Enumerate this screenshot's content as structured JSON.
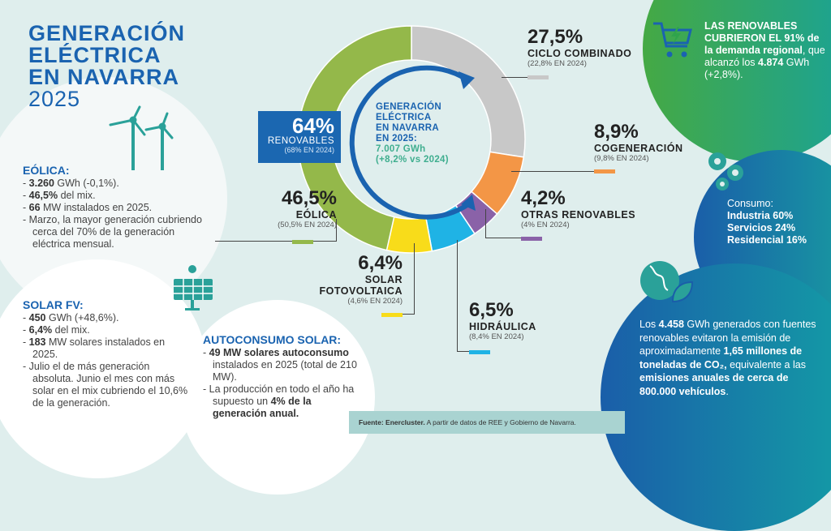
{
  "title": {
    "line1": "GENERACIÓN",
    "line2": "ELÉCTRICA",
    "line3": "EN NAVARRA",
    "year": "2025"
  },
  "eolica_box": {
    "heading": "EÓLICA:",
    "items": [
      {
        "b": "3.260",
        "t": " GWh (-0,1%)."
      },
      {
        "b": "46,5%",
        "t": " del mix."
      },
      {
        "b": "66",
        "t": " MW instalados en 2025."
      },
      {
        "b": "",
        "t": "Marzo, la mayor generación cubriendo cerca del 70% de la generación eléctrica mensual."
      }
    ]
  },
  "solar_box": {
    "heading": "SOLAR FV:",
    "items": [
      {
        "b": "450",
        "t": " GWh (+48,6%)."
      },
      {
        "b": "6,4%",
        "t": " del mix."
      },
      {
        "b": "183",
        "t": " MW solares instalados en 2025."
      },
      {
        "b": "",
        "t": "Julio el de más generación absoluta. Junio el mes con más solar en el mix cubriendo el 10,6% de la generación."
      }
    ]
  },
  "autoconsumo_box": {
    "heading": "AUTOCONSUMO SOLAR:",
    "item1_b": "49 MW solares autoconsumo",
    "item1_t": " instalados en 2025 (total de 210 MW).",
    "item2_t": "La producción en todo el año ha supuesto un ",
    "item2_b": "4% de la generación anual."
  },
  "renovables": {
    "pct": "64%",
    "label": "RENOVABLES",
    "prev": "(68% EN 2024)"
  },
  "center": {
    "l1": "GENERACIÓN",
    "l2": "ELÉCTRICA",
    "l3": "EN NAVARRA",
    "l4": "EN 2025:",
    "value": "7.007 GWh",
    "change": "(+8,2% vs 2024)"
  },
  "chart_data": {
    "type": "pie",
    "donut": true,
    "categories": [
      "CICLO COMBINADO",
      "COGENERACIÓN",
      "OTRAS RENOVABLES",
      "HIDRÁULICA",
      "SOLAR FOTOVOLTAICA",
      "EÓLICA"
    ],
    "values": [
      27.5,
      8.9,
      4.2,
      6.5,
      6.4,
      46.5
    ],
    "labels": [
      "27,5%",
      "8,9%",
      "4,2%",
      "6,5%",
      "6,4%",
      "46,5%"
    ],
    "prev": [
      "(22,8% EN 2024)",
      "(9,8% EN 2024)",
      "(4% EN 2024)",
      "(8,4% EN 2024)",
      "(4,6% EN 2024)",
      "(50,5% EN 2024)"
    ],
    "colors": [
      "#c8c8c8",
      "#f39646",
      "#8a62a8",
      "#1fb3e5",
      "#f8dc1a",
      "#94b84a"
    ]
  },
  "demanda": {
    "b1": "LAS RENOVABLES CUBRIERON EL 91%",
    "b2": "de la demanda regional",
    "t1": ", que alcanzó los ",
    "b3": "4.874",
    "t2": " GWh (+2,8%)."
  },
  "consumo": {
    "title": "Consumo:",
    "l1": "Industria 60%",
    "l2": "Servicios 24%",
    "l3": "Residencial 16%"
  },
  "emisiones": {
    "t1": "Los ",
    "b1": "4.458",
    "t2": " GWh generados con fuentes renovables evitaron la emisión de aproximadamente ",
    "b2": "1,65 millones de toneladas de CO₂,",
    "t3": " equivalente a las ",
    "b3": "emisiones anuales de cerca de 800.000 vehículos",
    "t4": "."
  },
  "footer": {
    "b": "Fuente: Enercluster.",
    "t": " A partir de datos de REE y Gobierno de Navarra."
  },
  "icons": [
    "wind-turbine-icon",
    "solar-panel-icon",
    "shopping-cart-bolt-icon",
    "gears-icon",
    "globe-leaf-icon"
  ]
}
